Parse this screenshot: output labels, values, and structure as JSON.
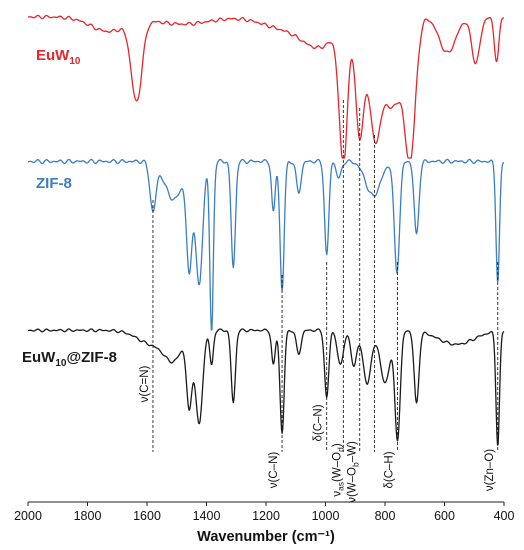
{
  "chart_data": {
    "type": "line",
    "xlabel": "Wavenumber (cm⁻¹)",
    "xlim": [
      2000,
      400
    ],
    "x_reversed": true,
    "xticks": [
      2000,
      1800,
      1600,
      1400,
      1200,
      1000,
      800,
      600,
      400
    ],
    "y_axis_shown": false,
    "grid": false,
    "legend": "none",
    "series": [
      {
        "name": "EuW10",
        "label_main": "EuW",
        "label_sub": "10",
        "label_suffix": "",
        "color": "#e8262b",
        "baseline": 0.98,
        "peaks": [
          {
            "x": 1635,
            "d": 0.55,
            "w": 18
          },
          {
            "x": 1730,
            "d": 0.1,
            "w": 60
          },
          {
            "x": 1480,
            "d": 0.05,
            "w": 90
          },
          {
            "x": 1150,
            "d": 0.07,
            "w": 70
          },
          {
            "x": 1020,
            "d": 0.2,
            "w": 60
          },
          {
            "x": 940,
            "d": 0.95,
            "w": 14
          },
          {
            "x": 885,
            "d": 0.8,
            "w": 14
          },
          {
            "x": 835,
            "d": 0.75,
            "w": 20
          },
          {
            "x": 775,
            "d": 0.62,
            "w": 32
          },
          {
            "x": 715,
            "d": 0.9,
            "w": 18
          },
          {
            "x": 590,
            "d": 0.25,
            "w": 28
          },
          {
            "x": 495,
            "d": 0.32,
            "w": 14
          },
          {
            "x": 425,
            "d": 0.3,
            "w": 8
          }
        ]
      },
      {
        "name": "ZIF-8",
        "label_main": "ZIF-8",
        "label_sub": "",
        "label_suffix": "",
        "color": "#3a7ec4",
        "baseline": 0.98,
        "peaks": [
          {
            "x": 1580,
            "d": 0.28,
            "w": 10
          },
          {
            "x": 1510,
            "d": 0.22,
            "w": 30
          },
          {
            "x": 1458,
            "d": 0.6,
            "w": 9
          },
          {
            "x": 1425,
            "d": 0.72,
            "w": 12
          },
          {
            "x": 1383,
            "d": 1.0,
            "w": 6
          },
          {
            "x": 1310,
            "d": 0.62,
            "w": 7
          },
          {
            "x": 1175,
            "d": 0.3,
            "w": 6
          },
          {
            "x": 1146,
            "d": 0.75,
            "w": 7
          },
          {
            "x": 1090,
            "d": 0.18,
            "w": 8
          },
          {
            "x": 996,
            "d": 0.55,
            "w": 7
          },
          {
            "x": 955,
            "d": 0.1,
            "w": 8
          },
          {
            "x": 840,
            "d": 0.2,
            "w": 25
          },
          {
            "x": 760,
            "d": 0.64,
            "w": 9
          },
          {
            "x": 694,
            "d": 0.43,
            "w": 8
          },
          {
            "x": 421,
            "d": 0.7,
            "w": 6
          }
        ]
      },
      {
        "name": "EuW10@ZIF-8",
        "label_main": "EuW",
        "label_sub": "10",
        "label_suffix": "@ZIF-8",
        "color": "#1a1a1a",
        "baseline": 0.98,
        "peaks": [
          {
            "x": 1580,
            "d": 0.12,
            "w": 50
          },
          {
            "x": 1510,
            "d": 0.22,
            "w": 30
          },
          {
            "x": 1458,
            "d": 0.62,
            "w": 9
          },
          {
            "x": 1425,
            "d": 0.8,
            "w": 12
          },
          {
            "x": 1383,
            "d": 0.3,
            "w": 6
          },
          {
            "x": 1310,
            "d": 0.62,
            "w": 7
          },
          {
            "x": 1175,
            "d": 0.3,
            "w": 6
          },
          {
            "x": 1146,
            "d": 0.88,
            "w": 7
          },
          {
            "x": 1090,
            "d": 0.2,
            "w": 8
          },
          {
            "x": 996,
            "d": 0.58,
            "w": 7
          },
          {
            "x": 950,
            "d": 0.3,
            "w": 10
          },
          {
            "x": 905,
            "d": 0.3,
            "w": 10
          },
          {
            "x": 860,
            "d": 0.45,
            "w": 14
          },
          {
            "x": 800,
            "d": 0.45,
            "w": 16
          },
          {
            "x": 758,
            "d": 0.92,
            "w": 9
          },
          {
            "x": 694,
            "d": 0.62,
            "w": 8
          },
          {
            "x": 560,
            "d": 0.12,
            "w": 60
          },
          {
            "x": 421,
            "d": 0.98,
            "w": 6
          }
        ]
      }
    ],
    "peak_assignments": [
      {
        "x": 1580,
        "label": "ν(C=N)",
        "sub": ""
      },
      {
        "x": 1146,
        "label": "ν(C–N)",
        "sub": ""
      },
      {
        "x": 996,
        "label": "δ(C–N)",
        "sub": ""
      },
      {
        "x": 940,
        "label": "ν(W–O)",
        "sub": ""
      },
      {
        "x": 885,
        "label": "ν(W–O–W)",
        "sub": ""
      },
      {
        "x": 835,
        "label": "",
        "sub": ""
      },
      {
        "x": 758,
        "label": "δ(C–H)",
        "sub": ""
      },
      {
        "x": 421,
        "label": "ν(Zn–O)",
        "sub": ""
      }
    ],
    "peak_label_text": {
      "vasW": {
        "pre": "ν",
        "presub": "as",
        "main": "(W–O",
        "sub": "d",
        "post": ")"
      },
      "vWOW": {
        "pre": "ν(W–O",
        "sub": "b",
        "post": "–W)"
      }
    }
  }
}
